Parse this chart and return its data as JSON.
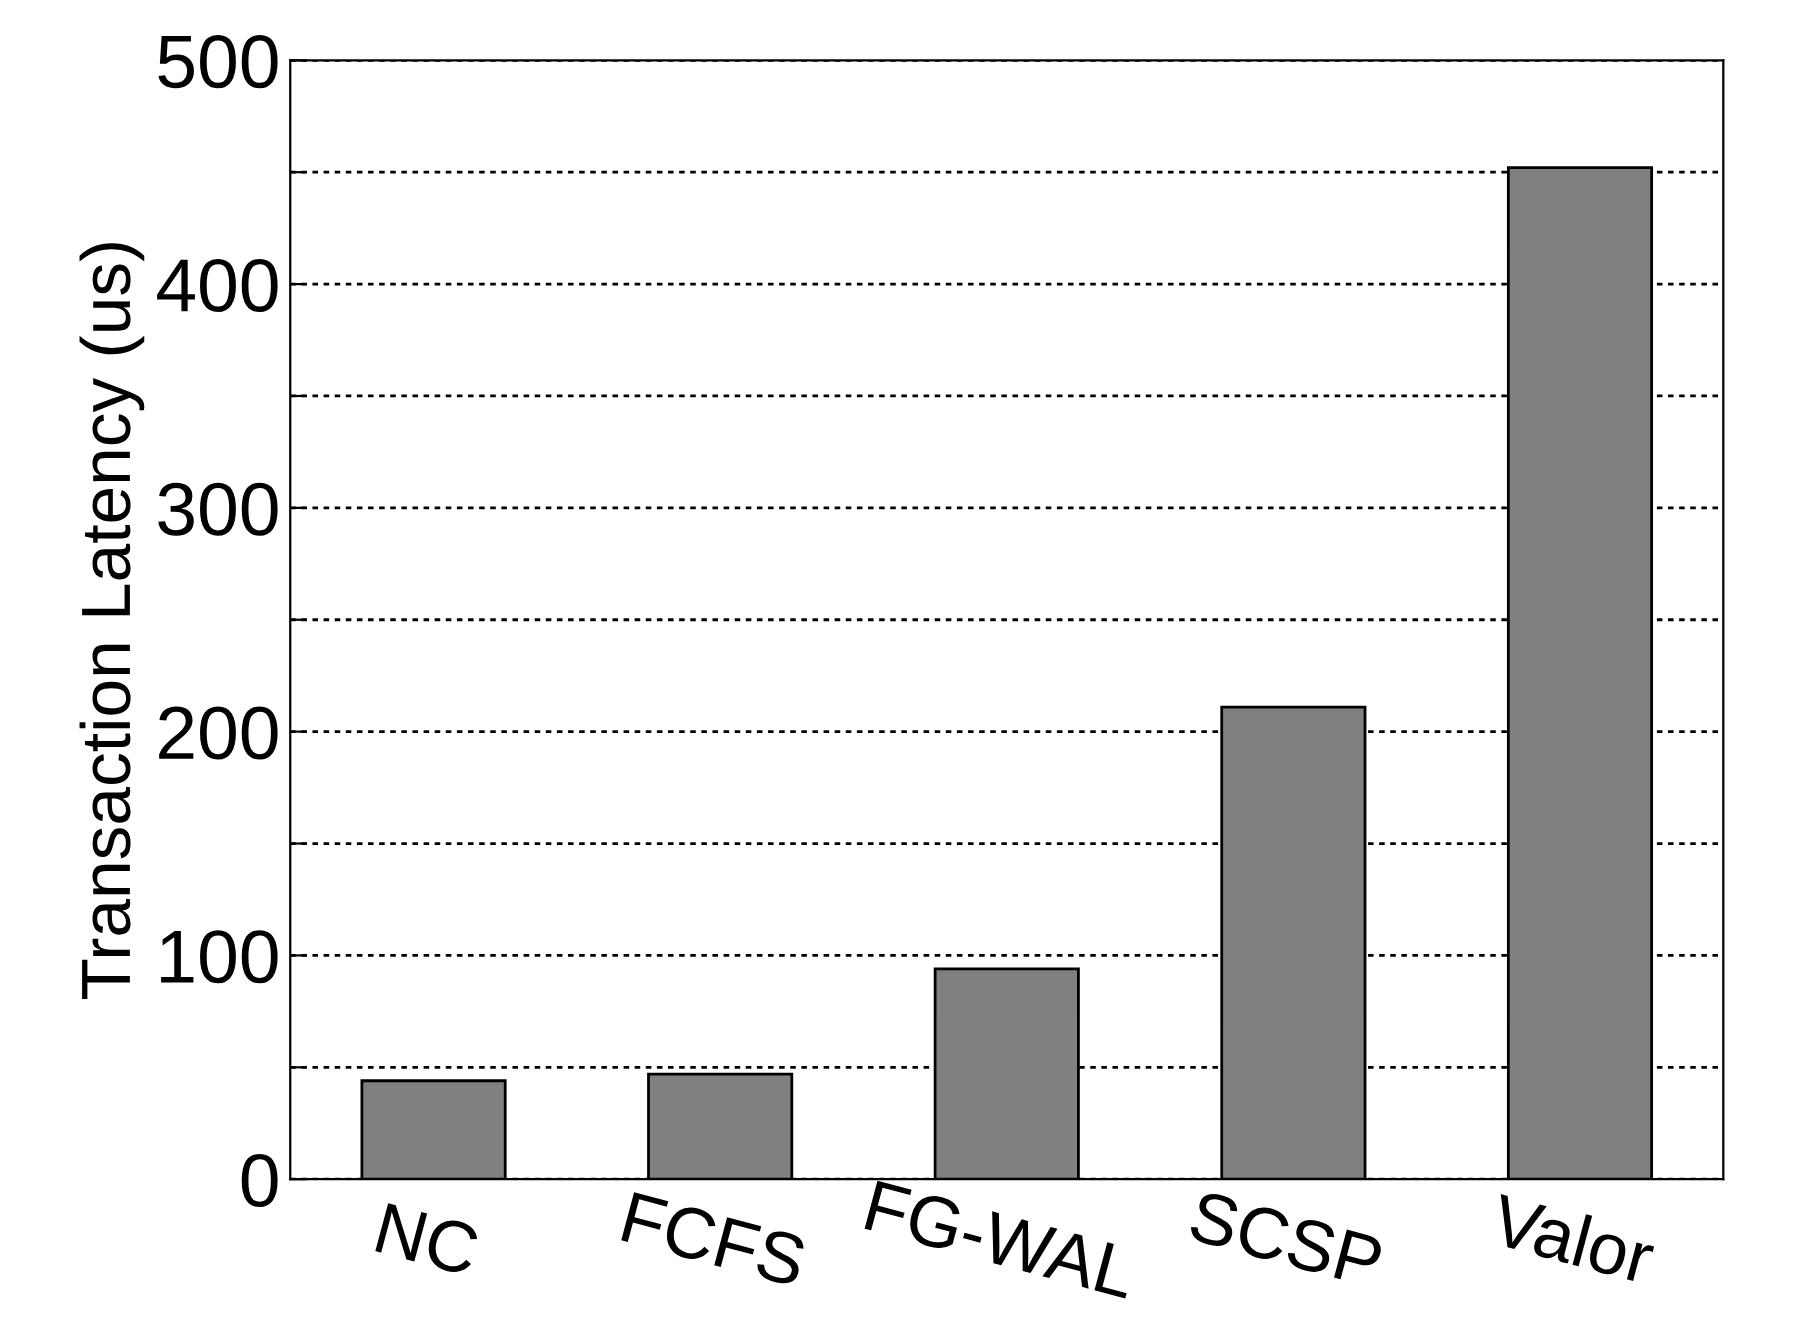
{
  "chart_data": {
    "type": "bar",
    "ylabel": "Transaction Latency (us)",
    "categories": [
      "NC",
      "FCFS",
      "FG-WAL",
      "SCSP",
      "Valor"
    ],
    "values": [
      44,
      47,
      94,
      211,
      452
    ],
    "color": "#808080",
    "ylim": [
      0,
      500
    ],
    "yticks": [
      0,
      {
        "value": 50,
        "label": null
      },
      100,
      {
        "value": 150,
        "label": null
      },
      200,
      {
        "value": 250,
        "label": null
      },
      300,
      {
        "value": 350,
        "label": null
      },
      400,
      {
        "value": 450,
        "label": null
      },
      500
    ],
    "grid": "y"
  }
}
